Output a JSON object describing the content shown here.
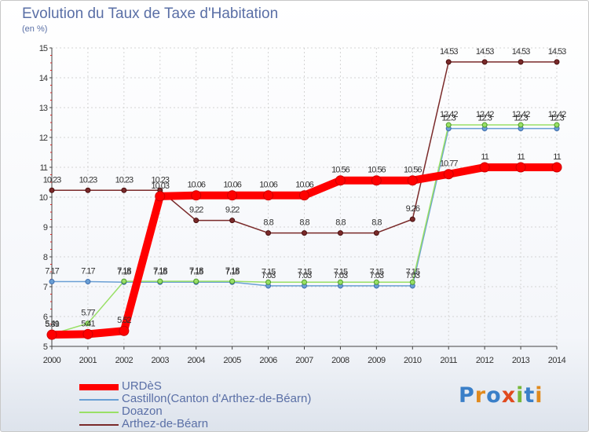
{
  "title": "Evolution du Taux de Taxe d'Habitation",
  "unit": "(en %)",
  "brand": "Proxiti",
  "chart_data": {
    "type": "line",
    "title": "Evolution du Taux de Taxe d'Habitation",
    "ylabel": "(en %)",
    "xlabel": "",
    "ylim": [
      5,
      15
    ],
    "yticks": [
      5,
      6,
      7,
      8,
      9,
      10,
      11,
      12,
      13,
      14,
      15
    ],
    "x": [
      2000,
      2001,
      2002,
      2003,
      2004,
      2005,
      2006,
      2007,
      2008,
      2009,
      2010,
      2011,
      2012,
      2013,
      2014
    ],
    "grid": true,
    "legend_position": "bottom-left",
    "series": [
      {
        "name": "URDèS",
        "color": "#ff0000",
        "values": [
          5.39,
          5.41,
          5.52,
          10.03,
          10.06,
          10.06,
          10.06,
          10.06,
          10.56,
          10.56,
          10.56,
          10.77,
          11,
          11,
          11
        ],
        "labels": [
          "5.39",
          "5.41",
          "5.52",
          "10.03",
          "10.06",
          "10.06",
          "10.06",
          "10.06",
          "10.56",
          "10.56",
          "10.56",
          "10.77",
          "11",
          "11",
          "11"
        ]
      },
      {
        "name": "Castillon(Canton d'Arthez-de-Béarn)",
        "color": "#6a9fd4",
        "values": [
          7.17,
          7.17,
          7.15,
          7.15,
          7.15,
          7.15,
          7.03,
          7.03,
          7.03,
          7.03,
          7.03,
          12.3,
          12.3,
          12.3,
          12.3
        ],
        "labels": [
          "7.17",
          "7.17",
          "7.15",
          "7.15",
          "7.15",
          "7.15",
          "7.03",
          "7.03",
          "7.03",
          "7.03",
          "7.03",
          "12.3",
          "12.3",
          "12.3",
          "12.3"
        ]
      },
      {
        "name": "Doazon",
        "color": "#99e066",
        "values": [
          5.41,
          5.77,
          7.18,
          7.18,
          7.18,
          7.18,
          7.15,
          7.15,
          7.15,
          7.15,
          7.15,
          12.42,
          12.42,
          12.42,
          12.42
        ],
        "labels": [
          "5.41",
          "5.77",
          "7.18",
          "7.18",
          "7.18",
          "7.18",
          "7.15",
          "7.15",
          "7.15",
          "7.15",
          "7.15",
          "12.42",
          "12.42",
          "12.42",
          "12.42"
        ]
      },
      {
        "name": "Arthez-de-Béarn",
        "color": "#7a2a2a",
        "values": [
          10.23,
          10.23,
          10.23,
          10.23,
          9.22,
          9.22,
          8.8,
          8.8,
          8.8,
          8.8,
          9.26,
          14.53,
          14.53,
          14.53,
          14.53
        ],
        "labels": [
          "10.23",
          "10.23",
          "10.23",
          "10.23",
          "9.22",
          "9.22",
          "8.8",
          "8.8",
          "8.8",
          "8.8",
          "9.26",
          "14.53",
          "14.53",
          "14.53",
          "14.53"
        ]
      }
    ]
  }
}
